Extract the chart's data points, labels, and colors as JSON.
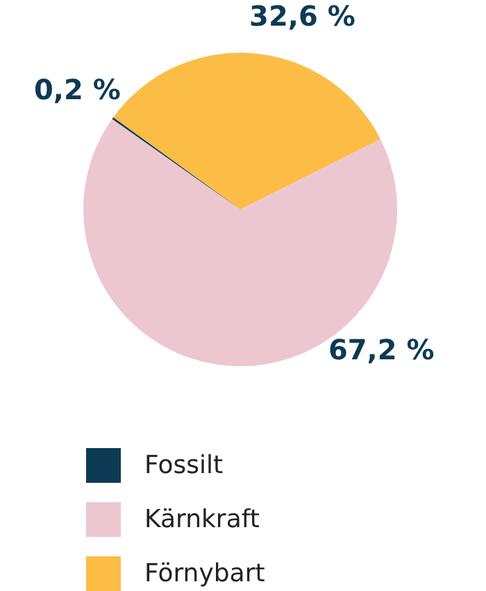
{
  "chart_data": {
    "type": "pie",
    "categories": [
      "Fossilt",
      "Kärnkraft",
      "Förnybart"
    ],
    "values": [
      0.2,
      67.2,
      32.6
    ],
    "colors": [
      "#0d3a55",
      "#ecc7d0",
      "#fbbd45"
    ],
    "value_labels": [
      "0,2 %",
      "67,2 %",
      "32,6 %"
    ],
    "legend": "bottom"
  }
}
